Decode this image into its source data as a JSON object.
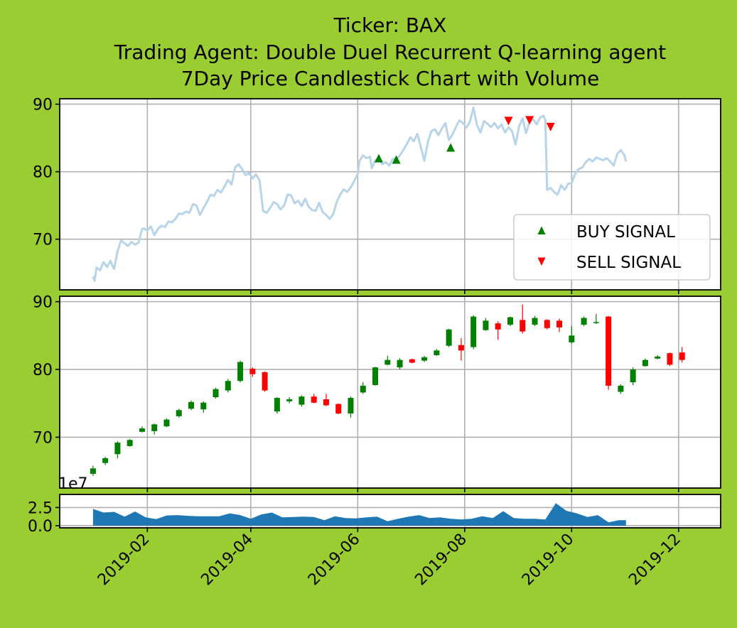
{
  "colors": {
    "background": "#9ACD32",
    "plot_bg": "#FFFFFF",
    "price_line": "#B8D4E8",
    "buy": "#008000",
    "sell": "#FF0000",
    "volume": "#1F77B4",
    "up_candle": "#008000",
    "down_candle": "#FF0000"
  },
  "chart_data": {
    "type": "line",
    "title_lines": [
      "Ticker: BAX",
      "Trading Agent: Double Duel Recurrent Q-learning agent",
      "7Day Price Candlestick Chart with Volume"
    ],
    "x_ticks": [
      "2019-02",
      "2019-04",
      "2019-06",
      "2019-08",
      "2019-10",
      "2019-12"
    ],
    "x_tick_days": [
      31,
      90,
      151,
      212,
      273,
      334
    ],
    "xlim_days": [
      -19,
      358
    ],
    "price_panel": {
      "ylim": [
        62.5,
        90.8
      ],
      "yticks": [
        70,
        80,
        90
      ],
      "price_series": [
        [
          0,
          64.5
        ],
        [
          1,
          63.8
        ],
        [
          2,
          65.8
        ],
        [
          4,
          65.4
        ],
        [
          6,
          66.6
        ],
        [
          8,
          65.9
        ],
        [
          10,
          66.8
        ],
        [
          11,
          66.1
        ],
        [
          12,
          65.6
        ],
        [
          14,
          68.2
        ],
        [
          16,
          69.8
        ],
        [
          18,
          69.4
        ],
        [
          20,
          69.0
        ],
        [
          22,
          69.6
        ],
        [
          24,
          69.2
        ],
        [
          26,
          69.5
        ],
        [
          28,
          71.5
        ],
        [
          29,
          71.6
        ],
        [
          31,
          71.3
        ],
        [
          33,
          71.9
        ],
        [
          35,
          70.6
        ],
        [
          37,
          71.5
        ],
        [
          39,
          72.0
        ],
        [
          41,
          71.8
        ],
        [
          43,
          72.6
        ],
        [
          45,
          72.5
        ],
        [
          47,
          73.0
        ],
        [
          49,
          73.8
        ],
        [
          51,
          73.7
        ],
        [
          53,
          74.1
        ],
        [
          55,
          73.9
        ],
        [
          57,
          75.2
        ],
        [
          59,
          75.0
        ],
        [
          61,
          73.6
        ],
        [
          63,
          74.6
        ],
        [
          65,
          75.5
        ],
        [
          67,
          76.6
        ],
        [
          69,
          76.4
        ],
        [
          71,
          77.3
        ],
        [
          73,
          76.9
        ],
        [
          75,
          77.8
        ],
        [
          77,
          78.8
        ],
        [
          79,
          78.1
        ],
        [
          81,
          80.6
        ],
        [
          83,
          81.1
        ],
        [
          85,
          80.4
        ],
        [
          87,
          79.5
        ],
        [
          89,
          79.8
        ],
        [
          91,
          79.0
        ],
        [
          93,
          79.6
        ],
        [
          95,
          78.7
        ],
        [
          97,
          74.2
        ],
        [
          99,
          73.9
        ],
        [
          101,
          74.6
        ],
        [
          103,
          75.5
        ],
        [
          105,
          75.2
        ],
        [
          107,
          74.4
        ],
        [
          109,
          75.0
        ],
        [
          111,
          76.6
        ],
        [
          113,
          76.5
        ],
        [
          115,
          75.3
        ],
        [
          117,
          75.7
        ],
        [
          119,
          74.9
        ],
        [
          121,
          76.0
        ],
        [
          123,
          74.8
        ],
        [
          125,
          74.3
        ],
        [
          127,
          74.2
        ],
        [
          129,
          75.4
        ],
        [
          131,
          74.0
        ],
        [
          133,
          73.6
        ],
        [
          135,
          73.0
        ],
        [
          137,
          73.7
        ],
        [
          139,
          75.5
        ],
        [
          141,
          76.6
        ],
        [
          143,
          77.4
        ],
        [
          145,
          77.0
        ],
        [
          147,
          77.7
        ],
        [
          149,
          78.6
        ],
        [
          151,
          79.7
        ],
        [
          152,
          81.6
        ],
        [
          154,
          82.4
        ],
        [
          156,
          82.0
        ],
        [
          158,
          82.2
        ],
        [
          159,
          80.5
        ],
        [
          161,
          81.7
        ],
        [
          163,
          81.9
        ],
        [
          165,
          81.1
        ],
        [
          167,
          81.4
        ],
        [
          169,
          80.9
        ],
        [
          171,
          81.9
        ],
        [
          173,
          81.8
        ],
        [
          175,
          82.4
        ],
        [
          177,
          83.2
        ],
        [
          179,
          84.1
        ],
        [
          181,
          85.1
        ],
        [
          183,
          84.5
        ],
        [
          185,
          85.6
        ],
        [
          187,
          83.6
        ],
        [
          189,
          81.6
        ],
        [
          191,
          84.4
        ],
        [
          193,
          86.0
        ],
        [
          195,
          86.3
        ],
        [
          197,
          85.4
        ],
        [
          199,
          86.4
        ],
        [
          201,
          87.2
        ],
        [
          203,
          84.7
        ],
        [
          205,
          85.5
        ],
        [
          207,
          86.6
        ],
        [
          209,
          87.6
        ],
        [
          211,
          87.2
        ],
        [
          213,
          86.5
        ],
        [
          215,
          87.4
        ],
        [
          217,
          89.5
        ],
        [
          219,
          86.9
        ],
        [
          221,
          85.8
        ],
        [
          223,
          87.5
        ],
        [
          225,
          87.1
        ],
        [
          227,
          86.6
        ],
        [
          229,
          87.2
        ],
        [
          231,
          86.4
        ],
        [
          233,
          87.0
        ],
        [
          235,
          85.8
        ],
        [
          237,
          86.6
        ],
        [
          239,
          86.0
        ],
        [
          241,
          84.0
        ],
        [
          243,
          86.7
        ],
        [
          245,
          87.9
        ],
        [
          247,
          85.7
        ],
        [
          249,
          87.4
        ],
        [
          251,
          87.8
        ],
        [
          253,
          87.0
        ],
        [
          255,
          88.0
        ],
        [
          257,
          88.3
        ],
        [
          258,
          87.6
        ],
        [
          259,
          77.3
        ],
        [
          261,
          77.6
        ],
        [
          263,
          77.0
        ],
        [
          265,
          76.6
        ],
        [
          267,
          78.0
        ],
        [
          269,
          77.3
        ],
        [
          271,
          78.2
        ],
        [
          273,
          78.3
        ],
        [
          275,
          79.7
        ],
        [
          277,
          80.4
        ],
        [
          279,
          80.6
        ],
        [
          281,
          81.4
        ],
        [
          283,
          81.9
        ],
        [
          285,
          81.5
        ],
        [
          287,
          82.1
        ],
        [
          289,
          81.9
        ],
        [
          291,
          81.7
        ],
        [
          293,
          82.0
        ],
        [
          295,
          81.5
        ],
        [
          297,
          80.9
        ],
        [
          299,
          82.6
        ],
        [
          301,
          83.2
        ],
        [
          303,
          82.5
        ],
        [
          304,
          81.5
        ]
      ],
      "buy_signals": [
        [
          163,
          82.0
        ],
        [
          173,
          81.8
        ],
        [
          204,
          83.6
        ]
      ],
      "sell_signals": [
        [
          237,
          87.5
        ],
        [
          249,
          87.6
        ],
        [
          261,
          86.6
        ]
      ],
      "legend": {
        "location": "lower right",
        "buy_label": "BUY SIGNAL",
        "sell_label": "SELL SIGNAL"
      }
    },
    "candle_panel": {
      "ylim": [
        62.5,
        90.8
      ],
      "yticks": [
        70,
        80,
        90
      ],
      "candles": [
        [
          0,
          64.6,
          65.4,
          64.3,
          65.8
        ],
        [
          7,
          66.2,
          66.9,
          65.9,
          67.1
        ],
        [
          14,
          67.5,
          69.2,
          66.9,
          69.4
        ],
        [
          21,
          68.7,
          69.6,
          68.6,
          69.7
        ],
        [
          28,
          70.8,
          71.3,
          70.7,
          71.6
        ],
        [
          35,
          70.9,
          71.9,
          70.4,
          72.0
        ],
        [
          42,
          71.6,
          72.6,
          71.5,
          72.8
        ],
        [
          49,
          73.1,
          74.0,
          72.9,
          74.2
        ],
        [
          56,
          74.2,
          75.2,
          74.0,
          75.4
        ],
        [
          63,
          74.1,
          75.1,
          73.6,
          75.3
        ],
        [
          70,
          75.9,
          77.1,
          75.7,
          77.3
        ],
        [
          77,
          76.9,
          78.3,
          76.6,
          78.6
        ],
        [
          84,
          78.3,
          81.1,
          78.1,
          81.3
        ],
        [
          91,
          80.1,
          79.3,
          78.9,
          80.3
        ],
        [
          98,
          79.6,
          76.9,
          76.7,
          79.7
        ],
        [
          105,
          73.8,
          75.8,
          73.5,
          75.9
        ],
        [
          112,
          75.3,
          75.6,
          75.0,
          75.9
        ],
        [
          119,
          74.8,
          76.0,
          74.5,
          76.2
        ],
        [
          126,
          76.0,
          75.1,
          75.0,
          76.4
        ],
        [
          133,
          75.6,
          74.7,
          74.6,
          76.4
        ],
        [
          140,
          74.9,
          73.5,
          73.4,
          75.0
        ],
        [
          147,
          73.5,
          75.8,
          72.9,
          76.0
        ],
        [
          154,
          76.6,
          77.6,
          76.4,
          78.1
        ],
        [
          161,
          77.7,
          80.3,
          77.6,
          80.4
        ],
        [
          168,
          80.7,
          81.4,
          80.6,
          82.0
        ],
        [
          175,
          80.3,
          81.4,
          80.0,
          81.7
        ],
        [
          182,
          81.5,
          81.0,
          80.9,
          81.6
        ],
        [
          189,
          81.3,
          81.8,
          81.1,
          82.0
        ],
        [
          196,
          82.1,
          82.8,
          82.0,
          83.0
        ],
        [
          203,
          83.5,
          85.9,
          83.3,
          86.0
        ],
        [
          210,
          83.6,
          82.8,
          81.3,
          84.6
        ],
        [
          217,
          83.3,
          87.8,
          83.0,
          88.0
        ],
        [
          224,
          85.8,
          87.2,
          85.7,
          87.6
        ],
        [
          231,
          86.8,
          85.9,
          84.4,
          87.1
        ],
        [
          238,
          86.6,
          87.7,
          86.4,
          87.8
        ],
        [
          245,
          87.3,
          85.6,
          85.3,
          89.6
        ],
        [
          252,
          86.6,
          87.6,
          86.4,
          87.9
        ],
        [
          259,
          87.3,
          86.1,
          85.9,
          87.4
        ],
        [
          266,
          87.2,
          86.2,
          85.5,
          87.5
        ],
        [
          273,
          84.0,
          85.0,
          83.8,
          86.4
        ],
        [
          280,
          86.6,
          87.6,
          86.4,
          87.8
        ],
        [
          287,
          86.9,
          87.0,
          86.7,
          88.2
        ],
        [
          294,
          87.8,
          77.6,
          77.0,
          87.9
        ],
        [
          301,
          76.7,
          77.6,
          76.4,
          77.8
        ],
        [
          308,
          78.1,
          80.0,
          77.7,
          80.3
        ],
        [
          315,
          80.5,
          81.4,
          80.4,
          81.6
        ],
        [
          322,
          81.6,
          81.9,
          81.5,
          82.1
        ],
        [
          329,
          82.4,
          80.7,
          80.5,
          82.5
        ],
        [
          336,
          82.5,
          81.4,
          81.0,
          83.3
        ]
      ]
    },
    "volume_panel": {
      "ylim": [
        -0.3,
        4.3
      ],
      "yticks": [
        "0.0",
        "2.5"
      ],
      "ytick_values": [
        0,
        2.5
      ],
      "offset_label": "1e7",
      "volume_series": [
        [
          0,
          2.3
        ],
        [
          6,
          1.8
        ],
        [
          12,
          1.9
        ],
        [
          18,
          1.25
        ],
        [
          24,
          1.95
        ],
        [
          30,
          1.15
        ],
        [
          36,
          0.9
        ],
        [
          42,
          1.4
        ],
        [
          48,
          1.45
        ],
        [
          54,
          1.35
        ],
        [
          60,
          1.3
        ],
        [
          66,
          1.3
        ],
        [
          72,
          1.3
        ],
        [
          78,
          1.7
        ],
        [
          84,
          1.45
        ],
        [
          90,
          0.95
        ],
        [
          96,
          1.55
        ],
        [
          102,
          1.8
        ],
        [
          108,
          1.15
        ],
        [
          114,
          1.2
        ],
        [
          120,
          1.25
        ],
        [
          126,
          1.2
        ],
        [
          132,
          0.75
        ],
        [
          138,
          1.3
        ],
        [
          144,
          1.05
        ],
        [
          150,
          1.0
        ],
        [
          156,
          1.15
        ],
        [
          162,
          1.25
        ],
        [
          168,
          0.6
        ],
        [
          174,
          0.95
        ],
        [
          180,
          1.25
        ],
        [
          186,
          1.45
        ],
        [
          192,
          1.05
        ],
        [
          198,
          1.15
        ],
        [
          204,
          0.95
        ],
        [
          210,
          0.85
        ],
        [
          216,
          0.95
        ],
        [
          222,
          1.3
        ],
        [
          228,
          1.05
        ],
        [
          234,
          2.0
        ],
        [
          240,
          1.05
        ],
        [
          246,
          0.95
        ],
        [
          252,
          0.95
        ],
        [
          258,
          0.85
        ],
        [
          264,
          3.1
        ],
        [
          270,
          2.05
        ],
        [
          276,
          1.7
        ],
        [
          282,
          1.2
        ],
        [
          288,
          1.45
        ],
        [
          294,
          0.45
        ],
        [
          300,
          0.75
        ],
        [
          304,
          0.75
        ]
      ]
    },
    "xlabel": "",
    "ylabel": ""
  }
}
